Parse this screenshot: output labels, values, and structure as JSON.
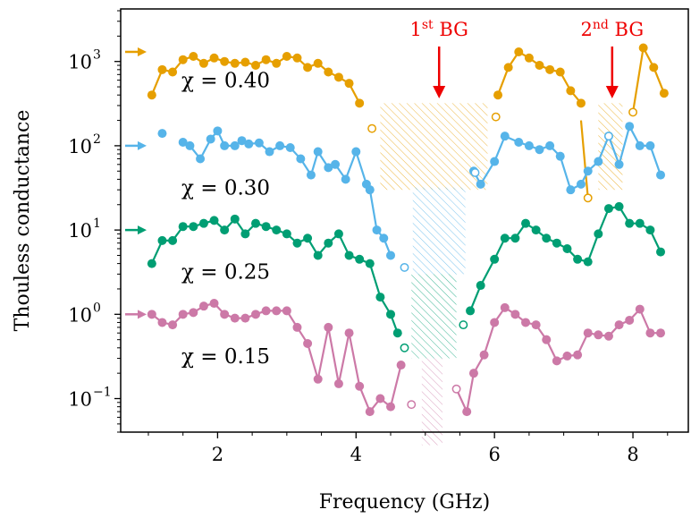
{
  "chart_data": {
    "type": "line",
    "xlabel": "Frequency (GHz)",
    "ylabel": "Thouless conductance",
    "xlim": [
      0.6,
      8.8
    ],
    "ylim": [
      0.04,
      4200
    ],
    "yscale": "log",
    "x_ticks": [
      {
        "v": 2,
        "label": "2"
      },
      {
        "v": 4,
        "label": "4"
      },
      {
        "v": 6,
        "label": "6"
      },
      {
        "v": 8,
        "label": "8"
      }
    ],
    "y_ticks": [
      {
        "v": 0.1,
        "base": "10",
        "exp": "−1"
      },
      {
        "v": 1,
        "base": "10",
        "exp": "0"
      },
      {
        "v": 10,
        "base": "10",
        "exp": "1"
      },
      {
        "v": 100,
        "base": "10",
        "exp": "2"
      },
      {
        "v": 1000,
        "base": "10",
        "exp": "3"
      }
    ],
    "band_gaps": [
      {
        "label_main": "1",
        "label_sup": "st",
        "label_tail": " BG",
        "x": 5.2,
        "arrow_color": "#ee0000"
      },
      {
        "label_main": "2",
        "label_sup": "nd",
        "label_tail": " BG",
        "x": 7.7,
        "arrow_color": "#ee0000"
      }
    ],
    "series": [
      {
        "name": "χ = 0.40",
        "color": "#e69f00",
        "segments": [
          {
            "x": [
              1.05,
              1.2,
              1.35,
              1.5,
              1.65,
              1.8,
              1.95,
              2.1,
              2.25,
              2.4,
              2.55,
              2.7,
              2.85,
              3.0,
              3.15,
              3.3,
              3.45,
              3.6,
              3.75,
              3.9,
              4.05
            ],
            "y": [
              400,
              800,
              750,
              1050,
              1150,
              950,
              1100,
              1000,
              950,
              980,
              900,
              1050,
              950,
              1150,
              1100,
              850,
              950,
              750,
              650,
              550,
              320
            ]
          },
          {
            "x": [
              6.05,
              6.2,
              6.35,
              6.5,
              6.65,
              6.8,
              6.95,
              7.1,
              7.25
            ],
            "y": [
              400,
              850,
              1300,
              1100,
              900,
              800,
              750,
              450,
              320
            ]
          },
          {
            "x": [
              8.15,
              8.3,
              8.45
            ],
            "y": [
              1450,
              850,
              420
            ]
          }
        ],
        "hollow": [
          {
            "x": 4.23,
            "y": 160
          },
          {
            "x": 6.02,
            "y": 220
          },
          {
            "x": 7.35,
            "y": 24
          },
          {
            "x": 8.0,
            "y": 250
          }
        ],
        "gap_lines": [
          [
            {
              "x": 7.25,
              "y": 200
            },
            {
              "x": 7.35,
              "y": 24
            }
          ],
          [
            {
              "x": 8.0,
              "y": 250
            },
            {
              "x": 8.15,
              "y": 1450
            }
          ]
        ],
        "label": "χ = 0.40",
        "label_y": 600,
        "arrow_y": 1300
      },
      {
        "name": "χ = 0.30",
        "color": "#56b4e9",
        "segments": [
          {
            "x": [
              1.5,
              1.6,
              1.75,
              1.9,
              2.0,
              2.1,
              2.25,
              2.35,
              2.45,
              2.6,
              2.75,
              2.9,
              3.05,
              3.2,
              3.35,
              3.45,
              3.6,
              3.7,
              3.85,
              4.0,
              4.15,
              4.2,
              4.3,
              4.4,
              4.5
            ],
            "y": [
              110,
              100,
              70,
              120,
              150,
              100,
              100,
              115,
              105,
              108,
              85,
              100,
              95,
              70,
              45,
              85,
              55,
              60,
              40,
              85,
              35,
              30,
              10,
              8,
              5
            ]
          },
          {
            "x": [
              5.7,
              5.8,
              6.0,
              6.15,
              6.35,
              6.5,
              6.65,
              6.8,
              6.95,
              7.1,
              7.25,
              7.35,
              7.5,
              7.65,
              7.8,
              7.95,
              8.1,
              8.25,
              8.4
            ],
            "y": [
              50,
              35,
              65,
              130,
              110,
              100,
              90,
              100,
              75,
              30,
              35,
              50,
              65,
              130,
              60,
              170,
              100,
              100,
              45
            ]
          }
        ],
        "extra_markers": [
          {
            "x": 1.2,
            "y": 140
          }
        ],
        "hollow": [
          {
            "x": 4.7,
            "y": 3.6
          },
          {
            "x": 5.72,
            "y": 48
          },
          {
            "x": 7.65,
            "y": 130
          }
        ],
        "gap_lines": [],
        "label": "χ = 0.30",
        "label_y": 32,
        "arrow_y": 100
      },
      {
        "name": "χ = 0.25",
        "color": "#009e73",
        "segments": [
          {
            "x": [
              1.05,
              1.2,
              1.35,
              1.5,
              1.65,
              1.8,
              1.95,
              2.1,
              2.25,
              2.4,
              2.55,
              2.7,
              2.85,
              3.0,
              3.15,
              3.3,
              3.45,
              3.6,
              3.75,
              3.9,
              4.05,
              4.2,
              4.35,
              4.5,
              4.6
            ],
            "y": [
              4,
              7.5,
              7.5,
              11,
              11,
              12,
              13,
              10,
              13.5,
              9,
              12,
              11,
              10,
              9,
              7,
              8,
              5,
              7,
              9,
              5,
              4.5,
              4,
              1.6,
              1,
              0.6
            ]
          },
          {
            "x": [
              5.65,
              5.8,
              6.0,
              6.15,
              6.3,
              6.45,
              6.6,
              6.75,
              6.9,
              7.05,
              7.2,
              7.35,
              7.5,
              7.65,
              7.8,
              7.95,
              8.1,
              8.25,
              8.4
            ],
            "y": [
              1.1,
              2.2,
              4.5,
              8,
              8,
              12,
              10,
              8,
              7,
              6,
              4.5,
              4.2,
              9,
              18,
              19,
              12,
              12,
              10,
              5.5
            ]
          }
        ],
        "hollow": [
          {
            "x": 4.7,
            "y": 0.4
          },
          {
            "x": 5.55,
            "y": 0.75
          }
        ],
        "gap_lines": [],
        "label": "χ = 0.25",
        "label_y": 3.2,
        "arrow_y": 10
      },
      {
        "name": "χ = 0.15",
        "color": "#cc79a7",
        "segments": [
          {
            "x": [
              1.05,
              1.2,
              1.35,
              1.5,
              1.65,
              1.8,
              1.95,
              2.1,
              2.25,
              2.4,
              2.55,
              2.7,
              2.85,
              3.0,
              3.15,
              3.3,
              3.45,
              3.6,
              3.75,
              3.9,
              4.05,
              4.2,
              4.35,
              4.5,
              4.65
            ],
            "y": [
              1.0,
              0.8,
              0.75,
              1.0,
              1.05,
              1.25,
              1.35,
              1.0,
              0.9,
              0.9,
              1.0,
              1.1,
              1.1,
              1.1,
              0.7,
              0.45,
              0.17,
              0.7,
              0.15,
              0.6,
              0.14,
              0.07,
              0.1,
              0.08,
              0.25
            ]
          },
          {
            "x": [
              5.6,
              5.7,
              5.85,
              6.0,
              6.15,
              6.3,
              6.45,
              6.6,
              6.75,
              6.9,
              7.05,
              7.2,
              7.35,
              7.5,
              7.65,
              7.8,
              7.95,
              8.1,
              8.25,
              8.4
            ],
            "y": [
              0.07,
              0.2,
              0.33,
              0.8,
              1.2,
              1.0,
              0.8,
              0.75,
              0.5,
              0.28,
              0.32,
              0.33,
              0.6,
              0.57,
              0.55,
              0.75,
              0.85,
              1.15,
              0.6,
              0.6
            ]
          }
        ],
        "hollow": [
          {
            "x": 4.8,
            "y": 0.085
          },
          {
            "x": 5.45,
            "y": 0.13
          }
        ],
        "gap_lines": [
          [
            {
              "x": 5.45,
              "y": 0.13
            },
            {
              "x": 5.6,
              "y": 0.07
            }
          ]
        ],
        "label": "χ = 0.15",
        "label_y": 0.32,
        "arrow_y": 1.0
      }
    ],
    "hatch_regions": [
      {
        "series": "χ = 0.40",
        "color": "#e69f00",
        "x0": 4.35,
        "x1": 5.9,
        "y0": 30,
        "y1": 320
      },
      {
        "series": "χ = 0.40",
        "color": "#e69f00",
        "x0": 7.5,
        "x1": 7.85,
        "y0": 30,
        "y1": 320
      },
      {
        "series": "χ = 0.30",
        "color": "#56b4e9",
        "x0": 4.82,
        "x1": 5.58,
        "y0": 3,
        "y1": 32
      },
      {
        "series": "χ = 0.25",
        "color": "#009e73",
        "x0": 4.8,
        "x1": 5.45,
        "y0": 0.3,
        "y1": 3
      },
      {
        "series": "χ = 0.15",
        "color": "#cc79a7",
        "x0": 4.95,
        "x1": 5.25,
        "y0": 0.028,
        "y1": 0.3
      }
    ]
  }
}
